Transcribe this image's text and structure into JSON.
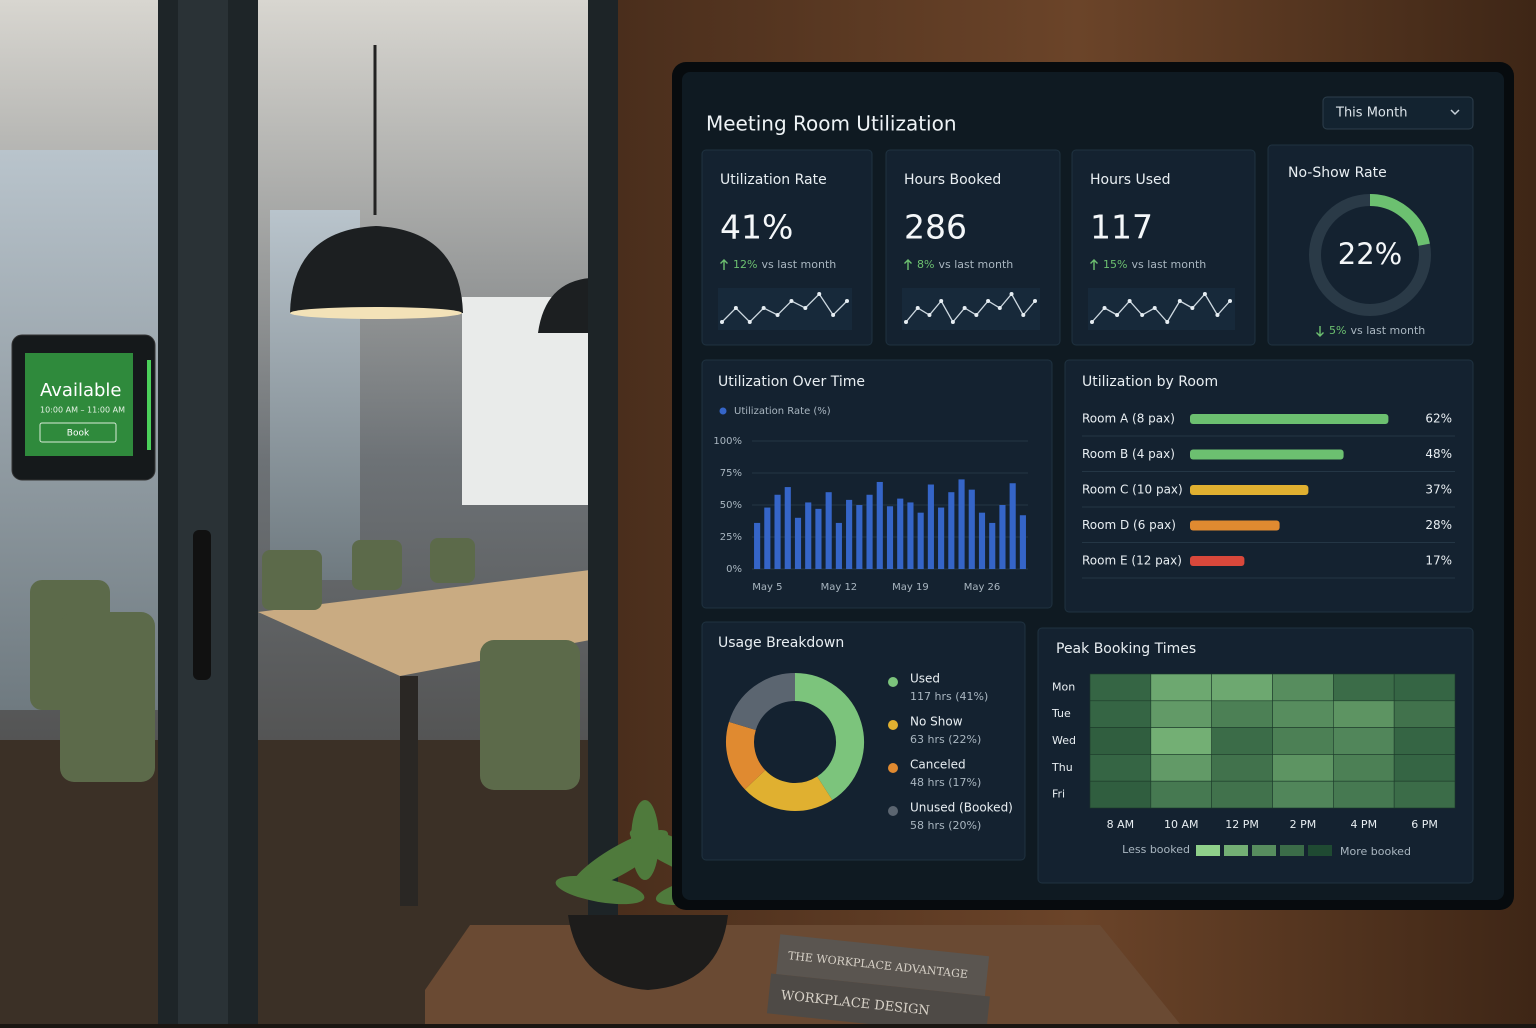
{
  "door_panel": {
    "status": "Available",
    "time": "10:00 AM – 11:00 AM",
    "button": "Book"
  },
  "dashboard": {
    "title": "Meeting Room Utilization",
    "period": "This Month",
    "kpis": [
      {
        "label": "Utilization Rate",
        "value": "41%",
        "change": "12%",
        "compare": "vs last month",
        "trend": [
          3,
          5,
          3,
          5,
          4,
          6,
          5,
          7,
          4,
          6
        ]
      },
      {
        "label": "Hours Booked",
        "value": "286",
        "change": "8%",
        "compare": "vs last month",
        "trend": [
          3,
          5,
          4,
          6,
          3,
          5,
          4,
          6,
          5,
          7,
          4,
          6
        ]
      },
      {
        "label": "Hours Used",
        "value": "117",
        "change": "15%",
        "compare": "vs last month",
        "trend": [
          3,
          5,
          4,
          6,
          4,
          5,
          3,
          6,
          5,
          7,
          4,
          6
        ]
      }
    ]
  },
  "chart_data": [
    {
      "type": "gauge",
      "title": "No-Show Rate",
      "values": [
        22
      ],
      "value_labels": [
        "22%"
      ],
      "ylim": [
        0,
        100
      ],
      "change": "5%",
      "compare": "vs last month",
      "color": "#6cc070"
    },
    {
      "type": "bar",
      "title": "Utilization Over Time",
      "categories": [
        null,
        "May 5",
        null,
        null,
        null,
        null,
        null,
        null,
        "May 12",
        null,
        null,
        null,
        null,
        null,
        null,
        "May 19",
        null,
        null,
        null,
        null,
        null,
        null,
        "May 26",
        null,
        null,
        null,
        null
      ],
      "series": [
        {
          "name": "Utilization Rate (%)",
          "color": "#3565c8",
          "values": [
            36,
            48,
            58,
            64,
            40,
            52,
            47,
            60,
            36,
            54,
            50,
            58,
            68,
            49,
            55,
            52,
            44,
            66,
            48,
            60,
            70,
            62,
            44,
            36,
            50,
            67,
            42
          ]
        }
      ],
      "ylim": [
        0,
        100
      ],
      "yticks": [
        {
          "value": 0,
          "label": "0%"
        },
        {
          "value": 25,
          "label": "25%"
        },
        {
          "value": 50,
          "label": "50%"
        },
        {
          "value": 75,
          "label": "75%"
        },
        {
          "value": 100,
          "label": "100%"
        }
      ],
      "grid": true
    },
    {
      "type": "hbar",
      "title": "Utilization by Room",
      "categories": [
        "Room A (8 pax)",
        "Room B (4 pax)",
        "Room C (10 pax)",
        "Room D (6 pax)",
        "Room E (12 pax)"
      ],
      "values": [
        62,
        48,
        37,
        28,
        17
      ],
      "value_labels": [
        "62%",
        "48%",
        "37%",
        "28%",
        "17%"
      ],
      "colors": [
        "#6cc070",
        "#6cc070",
        "#e0b030",
        "#e08a30",
        "#d9483b"
      ],
      "xlim": [
        0,
        100
      ]
    },
    {
      "type": "donut",
      "title": "Usage Breakdown",
      "categories": [
        "Used",
        "No Show",
        "Canceled",
        "Unused (Booked)"
      ],
      "values": [
        117,
        63,
        48,
        58
      ],
      "value_labels": [
        "117 hrs (41%)",
        "63 hrs (22%)",
        "48 hrs (17%)",
        "58 hrs (20%)"
      ],
      "colors": [
        "#7cc47c",
        "#e0b030",
        "#e08a30",
        "#5b6570"
      ]
    },
    {
      "type": "heatmap",
      "title": "Peak Booking Times",
      "x": [
        "8 AM",
        "10 AM",
        "12 PM",
        "2 PM",
        "4 PM",
        "6 PM"
      ],
      "y": [
        "Mon",
        "Tue",
        "Wed",
        "Thu",
        "Fri"
      ],
      "values": [
        [
          80,
          30,
          30,
          50,
          75,
          80
        ],
        [
          80,
          40,
          60,
          50,
          45,
          70
        ],
        [
          85,
          25,
          75,
          60,
          55,
          80
        ],
        [
          80,
          40,
          70,
          45,
          60,
          80
        ],
        [
          85,
          65,
          70,
          55,
          65,
          75
        ]
      ],
      "zlim": [
        0,
        100
      ],
      "colors": [
        "#8fd08a",
        "#1f4a32"
      ],
      "legend_low": "Less booked",
      "legend_high": "More booked"
    }
  ],
  "books": [
    "THE WORKPLACE ADVANTAGE",
    "WORKPLACE DESIGN"
  ]
}
